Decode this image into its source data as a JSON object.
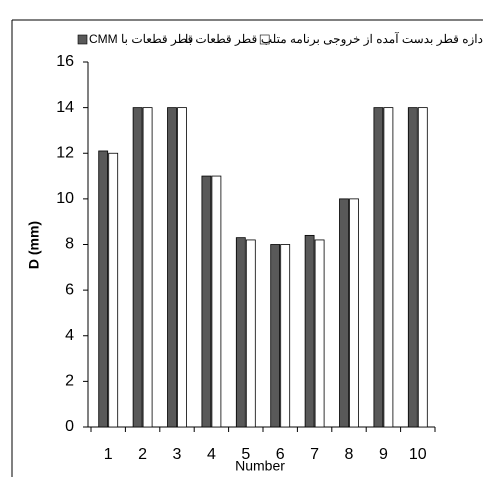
{
  "chart_data": {
    "type": "bar",
    "y_label": "D (mm)",
    "x_label": "Number",
    "categories": [
      "1",
      "2",
      "3",
      "4",
      "5",
      "6",
      "7",
      "8",
      "9",
      "10"
    ],
    "series": [
      {
        "name": "CMM قطر قطعات با",
        "color": "#595959",
        "values": [
          12.1,
          14,
          14,
          11,
          8.3,
          8,
          8.4,
          10,
          14,
          14
        ]
      },
      {
        "name": "قطر قطعات با",
        "color": "#ffffff",
        "values": [
          12,
          14,
          14,
          11,
          8.2,
          8,
          8.2,
          10,
          14,
          14
        ]
      }
    ],
    "legend_extra": "دازه قطر بدست آمده از خروجی برنامه متلب",
    "ylim": [
      0,
      16
    ],
    "yticks": [
      0,
      2,
      4,
      6,
      8,
      10,
      12,
      14,
      16
    ]
  }
}
